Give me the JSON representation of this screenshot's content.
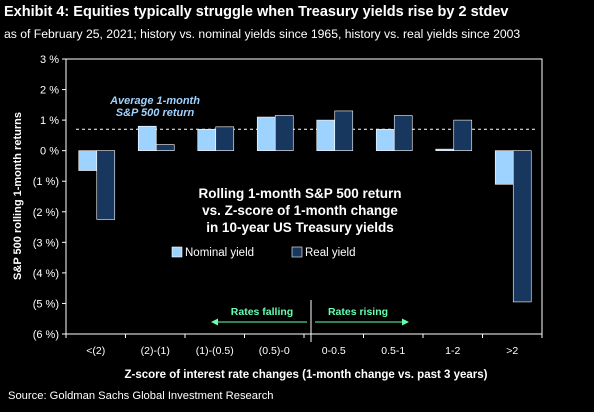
{
  "header": {
    "title": "Exhibit 4: Equities typically struggle when Treasury yields rise by 2 stdev",
    "subtitle": "as of February 25, 2021; history vs. nominal yields since 1965, history vs. real yields since 2003"
  },
  "footer": {
    "source": "Source: Goldman Sachs Global Investment Research"
  },
  "chart_data": {
    "type": "bar",
    "title": "Rolling 1-month S&P 500 return\nvs. Z-score of 1-month change\nin 10-year US Treasury yields",
    "xlabel": "Z-score of interest rate changes (1-month change vs. past 3 years)",
    "ylabel": "S&P 500 rolling 1-month returns",
    "ylim": [
      -6,
      3
    ],
    "yticks": [
      3,
      2,
      1,
      0,
      -1,
      -2,
      -3,
      -4,
      -5,
      -6
    ],
    "ytick_labels": [
      "3 %",
      "2 %",
      "1 %",
      "0 %",
      "(1 %)",
      "(2 %)",
      "(3 %)",
      "(4 %)",
      "(5 %)",
      "(6 %)"
    ],
    "categories": [
      "<(2)",
      "(2)-(1)",
      "(1)-(0.5)",
      "(0.5)-0",
      "0-0.5",
      "0.5-1",
      "1-2",
      ">2"
    ],
    "series": [
      {
        "name": "Nominal yield",
        "color": "#9fd3ff",
        "values": [
          -0.65,
          0.8,
          0.7,
          1.1,
          1.0,
          0.7,
          0.05,
          -1.1
        ]
      },
      {
        "name": "Real yield",
        "color": "#17375e",
        "values": [
          -2.25,
          0.2,
          0.78,
          1.15,
          1.3,
          1.15,
          1.0,
          -4.95
        ]
      }
    ],
    "reference_line": {
      "label": "Average 1-month\nS&P 500 return",
      "value": 0.7
    },
    "annotations": {
      "falling": "Rates falling",
      "rising": "Rates rising",
      "arrow_color": "#66ffb2"
    },
    "legend_position": "center",
    "grid": false
  }
}
